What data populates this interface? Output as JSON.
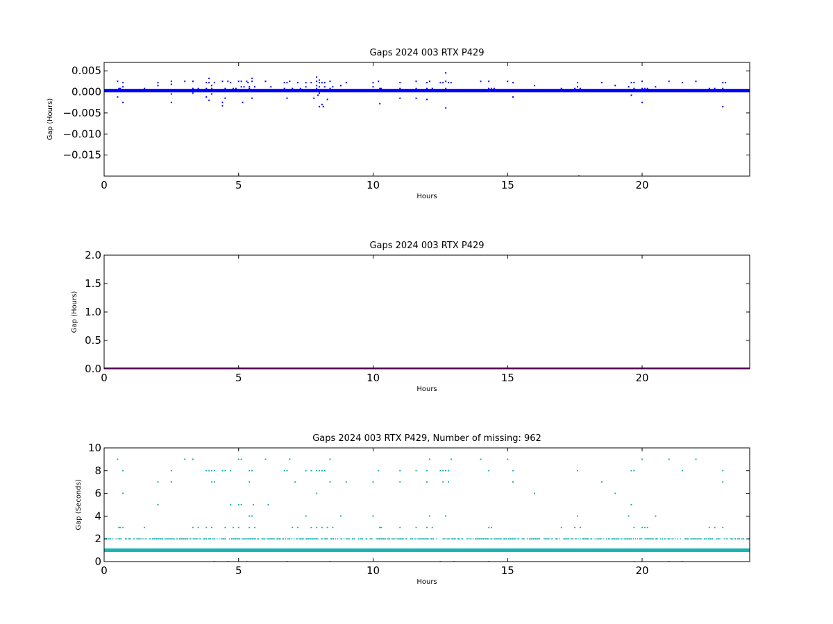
{
  "chart_data": [
    {
      "type": "scatter",
      "title": "Gaps 2024 003 RTX  P429",
      "xlabel": "Hours",
      "ylabel": "Gap (Hours)",
      "xlim": [
        0,
        24
      ],
      "ylim": [
        -0.02,
        0.007
      ],
      "xticks": [
        0,
        5,
        10,
        15,
        20
      ],
      "yticks": [
        -0.015,
        -0.01,
        -0.005,
        0.0,
        0.005
      ],
      "ytick_labels": [
        "−0.015",
        "−0.010",
        "−0.005",
        "0.000",
        "0.005"
      ],
      "color": "#0000ff",
      "band": {
        "y": 0.0003,
        "x": [
          0,
          24
        ]
      },
      "points": [
        [
          0.5,
          0.0025
        ],
        [
          0.5,
          -0.0012
        ],
        [
          0.55,
          0.0008
        ],
        [
          0.6,
          0.0008
        ],
        [
          0.7,
          0.0022
        ],
        [
          0.7,
          0.0012
        ],
        [
          0.7,
          -0.0025
        ],
        [
          1.5,
          0.0008
        ],
        [
          2.0,
          0.0015
        ],
        [
          2.0,
          0.0022
        ],
        [
          2.5,
          0.0025
        ],
        [
          2.5,
          0.0018
        ],
        [
          2.5,
          -0.0005
        ],
        [
          2.5,
          -0.0025
        ],
        [
          3.0,
          0.0025
        ],
        [
          3.3,
          0.0025
        ],
        [
          3.3,
          0.0008
        ],
        [
          3.3,
          -0.0003
        ],
        [
          3.5,
          0.0008
        ],
        [
          3.8,
          0.0022
        ],
        [
          3.8,
          0.0008
        ],
        [
          3.8,
          -0.0012
        ],
        [
          3.9,
          -0.002
        ],
        [
          3.9,
          0.0032
        ],
        [
          3.9,
          0.0022
        ],
        [
          4.0,
          0.0015
        ],
        [
          4.0,
          0.0008
        ],
        [
          4.0,
          -0.0005
        ],
        [
          4.1,
          0.0022
        ],
        [
          4.4,
          -0.0033
        ],
        [
          4.4,
          -0.0025
        ],
        [
          4.4,
          0.0025
        ],
        [
          4.5,
          -0.0015
        ],
        [
          4.5,
          0.0008
        ],
        [
          4.6,
          0.0025
        ],
        [
          4.7,
          0.0022
        ],
        [
          4.8,
          0.0008
        ],
        [
          4.9,
          0.0008
        ],
        [
          5.0,
          0.0025
        ],
        [
          5.1,
          0.0025
        ],
        [
          5.1,
          0.0012
        ],
        [
          5.15,
          -0.0025
        ],
        [
          5.2,
          0.0012
        ],
        [
          5.3,
          0.0025
        ],
        [
          5.35,
          0.0022
        ],
        [
          5.4,
          0.0012
        ],
        [
          5.4,
          0.0008
        ],
        [
          5.4,
          0.0003
        ],
        [
          5.5,
          0.0032
        ],
        [
          5.5,
          0.0025
        ],
        [
          5.5,
          -0.0015
        ],
        [
          5.6,
          0.0012
        ],
        [
          6.0,
          0.0025
        ],
        [
          6.2,
          0.0012
        ],
        [
          6.7,
          0.0022
        ],
        [
          6.7,
          0.0008
        ],
        [
          6.8,
          -0.0015
        ],
        [
          6.8,
          0.0022
        ],
        [
          6.9,
          0.0025
        ],
        [
          7.0,
          0.0008
        ],
        [
          7.2,
          0.0022
        ],
        [
          7.3,
          0.0008
        ],
        [
          7.5,
          0.0022
        ],
        [
          7.5,
          0.0012
        ],
        [
          7.7,
          0.0022
        ],
        [
          7.8,
          -0.0015
        ],
        [
          7.9,
          0.0035
        ],
        [
          7.9,
          0.0025
        ],
        [
          7.9,
          0.0015
        ],
        [
          7.9,
          0.0008
        ],
        [
          7.95,
          -0.0008
        ],
        [
          8.0,
          -0.0035
        ],
        [
          8.0,
          0.0028
        ],
        [
          8.0,
          0.0022
        ],
        [
          8.0,
          0.0012
        ],
        [
          8.0,
          -0.0003
        ],
        [
          8.1,
          0.0022
        ],
        [
          8.1,
          -0.003
        ],
        [
          8.15,
          -0.0035
        ],
        [
          8.2,
          0.0022
        ],
        [
          8.2,
          0.0012
        ],
        [
          8.3,
          -0.0018
        ],
        [
          8.4,
          0.0025
        ],
        [
          8.4,
          0.0008
        ],
        [
          8.5,
          0.0012
        ],
        [
          8.8,
          0.0015
        ],
        [
          9.0,
          0.0022
        ],
        [
          10.0,
          0.0012
        ],
        [
          10.0,
          0.0022
        ],
        [
          10.2,
          0.0025
        ],
        [
          10.25,
          0.0008
        ],
        [
          10.25,
          -0.0028
        ],
        [
          10.3,
          0.0008
        ],
        [
          11.0,
          0.0022
        ],
        [
          11.0,
          0.0008
        ],
        [
          11.0,
          -0.0015
        ],
        [
          11.6,
          0.0025
        ],
        [
          11.6,
          0.0008
        ],
        [
          11.6,
          -0.0015
        ],
        [
          12.0,
          0.0008
        ],
        [
          12.0,
          0.0022
        ],
        [
          12.0,
          -0.0018
        ],
        [
          12.1,
          0.0025
        ],
        [
          12.2,
          0.0008
        ],
        [
          12.5,
          0.0022
        ],
        [
          12.5,
          0.0003
        ],
        [
          12.6,
          0.0022
        ],
        [
          12.7,
          0.0045
        ],
        [
          12.7,
          0.0025
        ],
        [
          12.7,
          0.0008
        ],
        [
          12.7,
          -0.0038
        ],
        [
          12.8,
          0.0022
        ],
        [
          12.9,
          0.0022
        ],
        [
          13.0,
          0.0003
        ],
        [
          14.0,
          0.0025
        ],
        [
          14.3,
          0.0008
        ],
        [
          14.3,
          0.0025
        ],
        [
          14.4,
          0.0008
        ],
        [
          14.5,
          0.0008
        ],
        [
          15.0,
          0.0025
        ],
        [
          15.0,
          0.0003
        ],
        [
          15.2,
          0.0022
        ],
        [
          15.2,
          -0.0012
        ],
        [
          16.0,
          0.0015
        ],
        [
          17.0,
          0.0008
        ],
        [
          17.5,
          0.0008
        ],
        [
          17.6,
          0.0022
        ],
        [
          17.6,
          0.0012
        ],
        [
          17.7,
          0.0008
        ],
        [
          17.65,
          -0.02
        ],
        [
          18.5,
          0.0022
        ],
        [
          19.0,
          0.0015
        ],
        [
          19.5,
          0.0012
        ],
        [
          19.6,
          0.0022
        ],
        [
          19.6,
          -0.0008
        ],
        [
          19.7,
          0.0022
        ],
        [
          19.7,
          0.0008
        ],
        [
          20.0,
          0.0025
        ],
        [
          20.0,
          0.0008
        ],
        [
          20.0,
          -0.0025
        ],
        [
          20.1,
          0.0008
        ],
        [
          20.2,
          0.0008
        ],
        [
          20.5,
          0.0012
        ],
        [
          21.0,
          0.0025
        ],
        [
          21.0,
          0.0003
        ],
        [
          21.5,
          0.0022
        ],
        [
          21.5,
          0.0003
        ],
        [
          22.0,
          0.0025
        ],
        [
          22.5,
          0.0008
        ],
        [
          22.7,
          0.0008
        ],
        [
          23.0,
          0.0022
        ],
        [
          23.0,
          0.0008
        ],
        [
          23.0,
          -0.0035
        ],
        [
          23.1,
          0.0022
        ]
      ]
    },
    {
      "type": "line",
      "title": "Gaps 2024 003 RTX  P429",
      "xlabel": "Hours",
      "ylabel": "Gap (Hours)",
      "xlim": [
        0,
        24
      ],
      "ylim": [
        0,
        2.0
      ],
      "xticks": [
        0,
        5,
        10,
        15,
        20
      ],
      "yticks": [
        0.0,
        0.5,
        1.0,
        1.5,
        2.0
      ],
      "ytick_labels": [
        "0.0",
        "0.5",
        "1.0",
        "1.5",
        "2.0"
      ],
      "color": "#990099",
      "band": {
        "y": 0.0,
        "x": [
          0,
          24
        ]
      },
      "points": []
    },
    {
      "type": "scatter",
      "title": "Gaps 2024 003 RTX  P429, Number of missing: 962",
      "xlabel": "Hours",
      "ylabel": "Gap (Seconds)",
      "xlim": [
        0,
        24
      ],
      "ylim": [
        0,
        10
      ],
      "xticks": [
        0,
        5,
        10,
        15,
        20
      ],
      "yticks": [
        0,
        2,
        4,
        6,
        8,
        10
      ],
      "ytick_labels": [
        "0",
        "2",
        "4",
        "6",
        "8",
        "10"
      ],
      "color": "#1ab3b3",
      "band": {
        "y": 1,
        "x": [
          0,
          24
        ]
      },
      "series_y2_band": {
        "y": 2,
        "x": [
          0,
          24
        ],
        "density": "dense"
      },
      "points": [
        [
          0.5,
          9
        ],
        [
          0.6,
          3
        ],
        [
          0.7,
          8
        ],
        [
          0.7,
          6
        ],
        [
          0.7,
          3
        ],
        [
          0.55,
          3
        ],
        [
          1.5,
          3
        ],
        [
          2.0,
          7
        ],
        [
          2.0,
          5
        ],
        [
          2.5,
          8
        ],
        [
          2.5,
          7
        ],
        [
          3.0,
          9
        ],
        [
          3.3,
          9
        ],
        [
          3.3,
          3
        ],
        [
          3.5,
          3
        ],
        [
          3.8,
          8
        ],
        [
          3.8,
          3
        ],
        [
          3.9,
          8
        ],
        [
          4.0,
          8
        ],
        [
          4.0,
          7
        ],
        [
          4.0,
          3
        ],
        [
          4.1,
          8
        ],
        [
          4.1,
          7
        ],
        [
          4.1,
          0
        ],
        [
          4.4,
          8
        ],
        [
          4.5,
          8
        ],
        [
          4.5,
          3
        ],
        [
          4.6,
          0
        ],
        [
          4.7,
          8
        ],
        [
          4.7,
          5
        ],
        [
          4.8,
          3
        ],
        [
          5.0,
          9
        ],
        [
          5.0,
          5
        ],
        [
          5.0,
          3
        ],
        [
          5.1,
          9
        ],
        [
          5.1,
          5
        ],
        [
          5.3,
          0
        ],
        [
          5.4,
          8
        ],
        [
          5.4,
          7
        ],
        [
          5.4,
          4
        ],
        [
          5.4,
          3
        ],
        [
          5.5,
          8
        ],
        [
          5.5,
          4
        ],
        [
          5.55,
          5
        ],
        [
          5.6,
          3
        ],
        [
          6.0,
          9
        ],
        [
          6.1,
          5
        ],
        [
          6.7,
          8
        ],
        [
          6.8,
          8
        ],
        [
          6.8,
          0
        ],
        [
          6.9,
          9
        ],
        [
          7.0,
          3
        ],
        [
          7.1,
          7
        ],
        [
          7.2,
          3
        ],
        [
          7.5,
          8
        ],
        [
          7.5,
          4
        ],
        [
          7.7,
          8
        ],
        [
          7.7,
          3
        ],
        [
          7.9,
          8
        ],
        [
          7.9,
          6
        ],
        [
          7.9,
          3
        ],
        [
          8.0,
          8
        ],
        [
          8.1,
          8
        ],
        [
          8.1,
          3
        ],
        [
          8.2,
          8
        ],
        [
          8.3,
          3
        ],
        [
          8.4,
          9
        ],
        [
          8.4,
          7
        ],
        [
          8.4,
          0
        ],
        [
          8.5,
          3
        ],
        [
          8.8,
          4
        ],
        [
          9.0,
          7
        ],
        [
          10.0,
          7
        ],
        [
          10.0,
          4
        ],
        [
          10.2,
          8
        ],
        [
          10.25,
          3
        ],
        [
          10.3,
          3
        ],
        [
          11.0,
          8
        ],
        [
          11.0,
          7
        ],
        [
          11.0,
          3
        ],
        [
          11.6,
          8
        ],
        [
          11.6,
          3
        ],
        [
          12.0,
          8
        ],
        [
          12.0,
          7
        ],
        [
          12.0,
          3
        ],
        [
          12.1,
          9
        ],
        [
          12.1,
          4
        ],
        [
          12.2,
          3
        ],
        [
          12.5,
          8
        ],
        [
          12.5,
          0
        ],
        [
          12.6,
          8
        ],
        [
          12.6,
          7
        ],
        [
          12.7,
          8
        ],
        [
          12.7,
          4
        ],
        [
          12.8,
          8
        ],
        [
          12.8,
          7
        ],
        [
          12.9,
          9
        ],
        [
          13.0,
          0
        ],
        [
          14.0,
          9
        ],
        [
          14.3,
          8
        ],
        [
          14.3,
          3
        ],
        [
          14.4,
          3
        ],
        [
          14.3,
          0
        ],
        [
          15.0,
          9
        ],
        [
          15.2,
          8
        ],
        [
          15.2,
          7
        ],
        [
          16.0,
          6
        ],
        [
          17.0,
          3
        ],
        [
          17.5,
          3
        ],
        [
          17.6,
          8
        ],
        [
          17.6,
          4
        ],
        [
          17.7,
          3
        ],
        [
          18.5,
          7
        ],
        [
          19.0,
          6
        ],
        [
          19.5,
          4
        ],
        [
          19.6,
          8
        ],
        [
          19.6,
          5
        ],
        [
          19.7,
          8
        ],
        [
          19.7,
          3
        ],
        [
          19.7,
          0
        ],
        [
          20.0,
          9
        ],
        [
          20.0,
          3
        ],
        [
          20.1,
          3
        ],
        [
          20.2,
          3
        ],
        [
          20.5,
          4
        ],
        [
          21.0,
          9
        ],
        [
          21.0,
          0
        ],
        [
          21.5,
          8
        ],
        [
          21.5,
          0
        ],
        [
          22.0,
          9
        ],
        [
          22.5,
          3
        ],
        [
          22.7,
          3
        ],
        [
          23.0,
          8
        ],
        [
          23.0,
          7
        ],
        [
          23.0,
          3
        ]
      ]
    }
  ]
}
